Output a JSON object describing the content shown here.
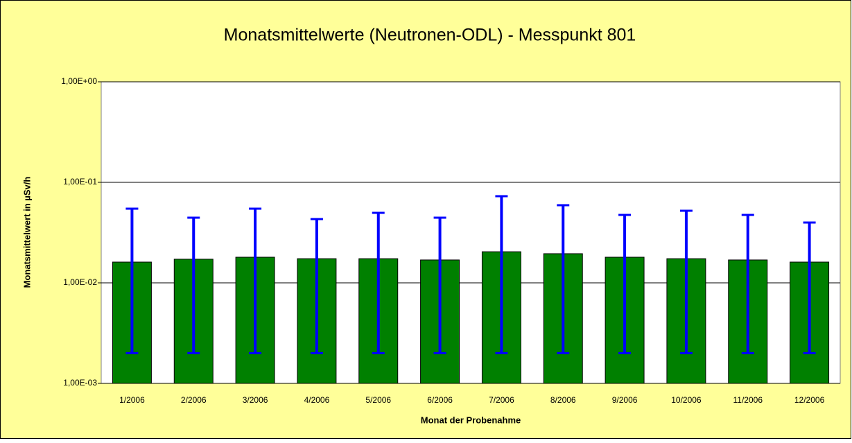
{
  "chart_data": {
    "type": "bar",
    "title": "Monatsmittelwerte (Neutronen-ODL) - Messpunkt 801",
    "xlabel": "Monat der Probenahme",
    "ylabel": "Monatsmittelwert in µSv/h",
    "categories": [
      "1/2006",
      "2/2006",
      "3/2006",
      "4/2006",
      "5/2006",
      "6/2006",
      "7/2006",
      "8/2006",
      "9/2006",
      "10/2006",
      "11/2006",
      "12/2006"
    ],
    "values": [
      0.0161,
      0.0172,
      0.018,
      0.0174,
      0.0174,
      0.0169,
      0.0204,
      0.0195,
      0.018,
      0.0174,
      0.0169,
      0.0161
    ],
    "error_low": [
      0.002,
      0.002,
      0.002,
      0.002,
      0.002,
      0.002,
      0.002,
      0.002,
      0.002,
      0.002,
      0.002,
      0.002
    ],
    "error_high": [
      0.0547,
      0.0445,
      0.0547,
      0.0431,
      0.0497,
      0.0445,
      0.0728,
      0.0592,
      0.0474,
      0.0522,
      0.0474,
      0.0398
    ],
    "color": "#008000",
    "error_color": "#0000ff",
    "ylim": [
      0.001,
      1
    ],
    "log_y": true,
    "grid": true,
    "yticks": [
      {
        "value": 0.001,
        "label": "1,00E-03"
      },
      {
        "value": 0.01,
        "label": "1,00E-02"
      },
      {
        "value": 0.1,
        "label": "1,00E-01"
      },
      {
        "value": 1,
        "label": "1,00E+00"
      }
    ]
  }
}
